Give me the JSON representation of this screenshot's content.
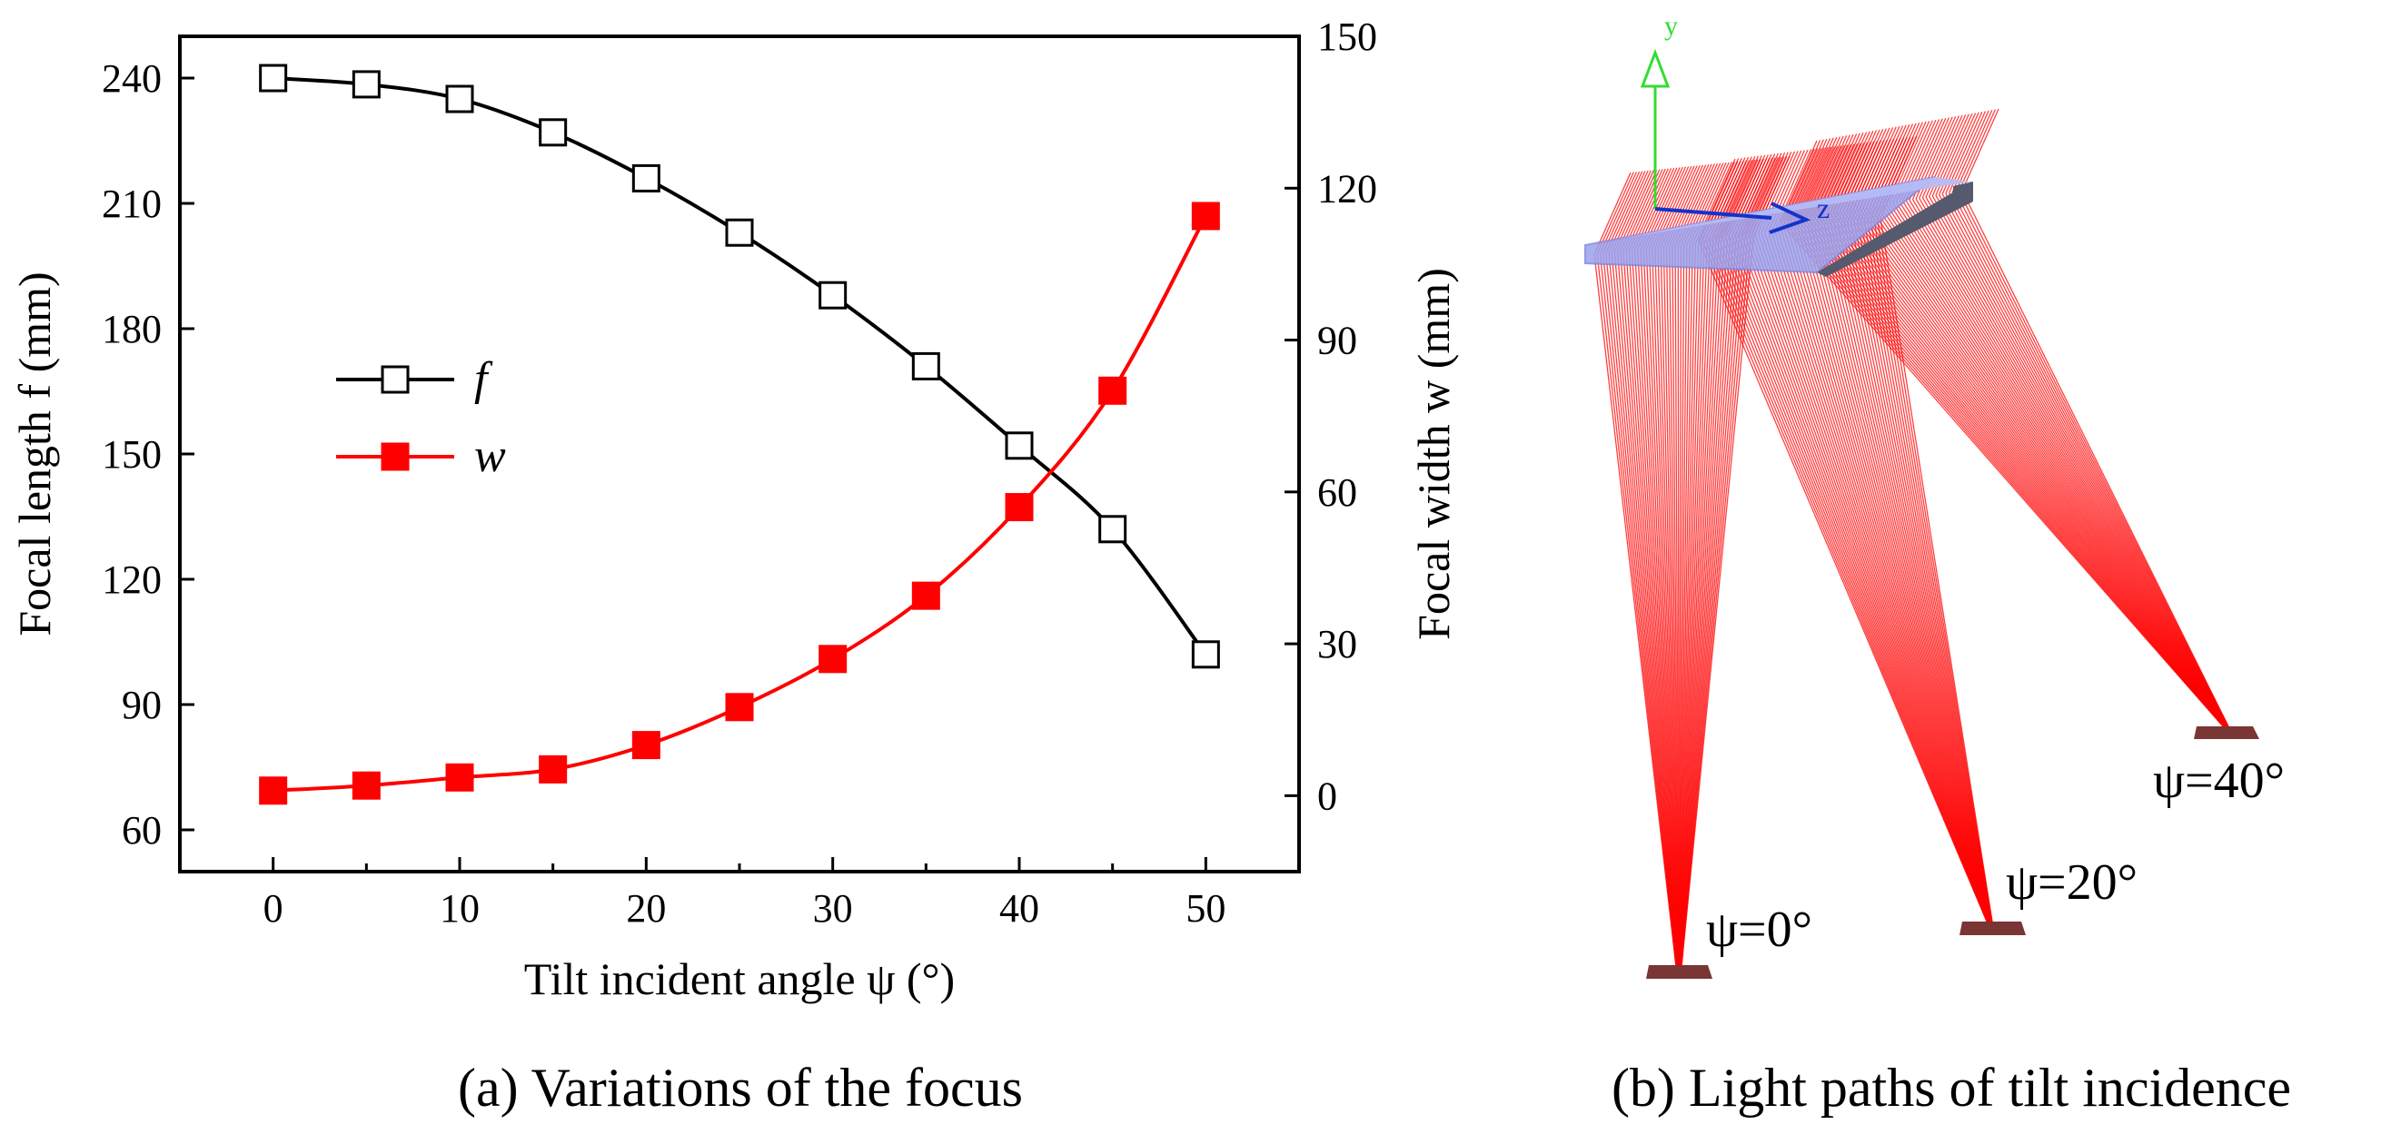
{
  "chart_data": {
    "type": "line",
    "xlabel": "Tilt incident angle ψ (°)",
    "ylabel": "Focal length f (mm)",
    "y2label": "Focal width w (mm)",
    "xlim": [
      -5,
      55
    ],
    "ylim": [
      50,
      250
    ],
    "y2lim": [
      -15,
      150
    ],
    "xticks": [
      "0",
      "10",
      "20",
      "30",
      "40",
      "50"
    ],
    "yticks": [
      "60",
      "90",
      "120",
      "150",
      "180",
      "210",
      "240"
    ],
    "y2ticks": [
      "0",
      "30",
      "60",
      "90",
      "120",
      "150"
    ],
    "x": [
      0,
      5,
      10,
      15,
      20,
      25,
      30,
      35,
      40,
      45,
      50
    ],
    "series": [
      {
        "name": "f",
        "axis": "left",
        "marker": "open-square",
        "color": "#000000",
        "values": [
          240,
          238.5,
          235,
          227,
          216,
          203,
          188,
          171,
          152,
          132,
          102
        ]
      },
      {
        "name": "w",
        "axis": "right",
        "marker": "filled-square",
        "color": "#ff0000",
        "values": [
          1,
          2,
          3.6,
          5.2,
          10,
          17.5,
          27,
          39.5,
          57,
          80,
          114.5
        ]
      }
    ],
    "legend": "left-middle",
    "grid": false,
    "caption": "(a) Variations of the focus"
  },
  "illustration": {
    "caption": "(b) Light paths of tilt incidence",
    "axis_y_label": "y",
    "axis_z_label": "z",
    "labels": [
      "ψ=0°",
      "ψ=20°",
      "ψ=40°"
    ],
    "ray_color": "#ff0000",
    "lens_color": "#9aa3f0"
  }
}
